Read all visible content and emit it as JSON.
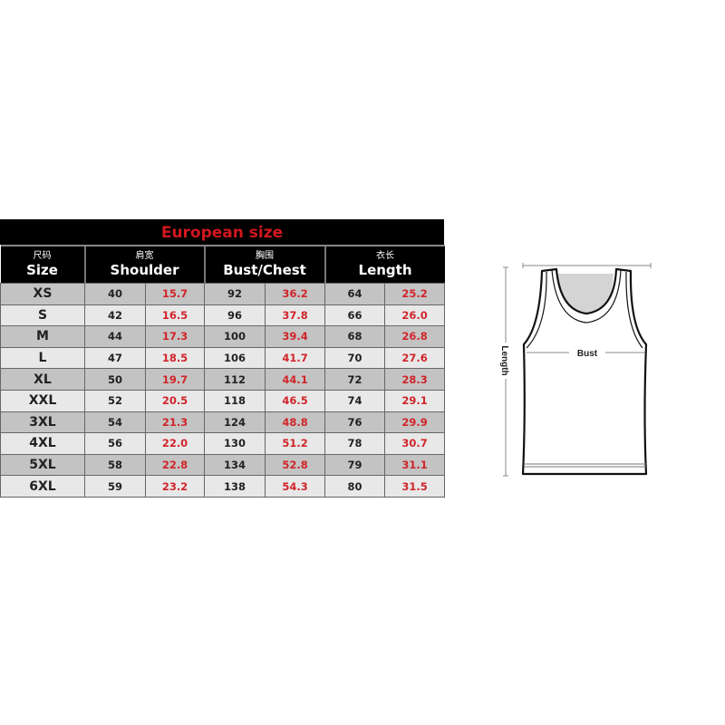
{
  "title": "European size",
  "headers": [
    {
      "cn": "尺码",
      "en": "Size"
    },
    {
      "cn": "肩宽",
      "en": "Shoulder"
    },
    {
      "cn": "胸围",
      "en": "Bust/Chest"
    },
    {
      "cn": "衣长",
      "en": "Length"
    }
  ],
  "rows": [
    {
      "size": "XS",
      "shoulder_cm": "40",
      "shoulder_in": "15.7",
      "bust_cm": "92",
      "bust_in": "36.2",
      "length_cm": "64",
      "length_in": "25.2"
    },
    {
      "size": "S",
      "shoulder_cm": "42",
      "shoulder_in": "16.5",
      "bust_cm": "96",
      "bust_in": "37.8",
      "length_cm": "66",
      "length_in": "26.0"
    },
    {
      "size": "M",
      "shoulder_cm": "44",
      "shoulder_in": "17.3",
      "bust_cm": "100",
      "bust_in": "39.4",
      "length_cm": "68",
      "length_in": "26.8"
    },
    {
      "size": "L",
      "shoulder_cm": "47",
      "shoulder_in": "18.5",
      "bust_cm": "106",
      "bust_in": "41.7",
      "length_cm": "70",
      "length_in": "27.6"
    },
    {
      "size": "XL",
      "shoulder_cm": "50",
      "shoulder_in": "19.7",
      "bust_cm": "112",
      "bust_in": "44.1",
      "length_cm": "72",
      "length_in": "28.3"
    },
    {
      "size": "XXL",
      "shoulder_cm": "52",
      "shoulder_in": "20.5",
      "bust_cm": "118",
      "bust_in": "46.5",
      "length_cm": "74",
      "length_in": "29.1"
    },
    {
      "size": "3XL",
      "shoulder_cm": "54",
      "shoulder_in": "21.3",
      "bust_cm": "124",
      "bust_in": "48.8",
      "length_cm": "76",
      "length_in": "29.9"
    },
    {
      "size": "4XL",
      "shoulder_cm": "56",
      "shoulder_in": "22.0",
      "bust_cm": "130",
      "bust_in": "51.2",
      "length_cm": "78",
      "length_in": "30.7"
    },
    {
      "size": "5XL",
      "shoulder_cm": "58",
      "shoulder_in": "22.8",
      "bust_cm": "134",
      "bust_in": "52.8",
      "length_cm": "79",
      "length_in": "31.1"
    },
    {
      "size": "6XL",
      "shoulder_cm": "59",
      "shoulder_in": "23.2",
      "bust_cm": "138",
      "bust_in": "54.3",
      "length_cm": "80",
      "length_in": "31.5"
    }
  ],
  "diagram": {
    "bust_label": "Bust",
    "length_label": "Length"
  },
  "colors": {
    "title_text": "#d0181e",
    "inch_values": "#d0252a",
    "header_bg": "#000000",
    "row_dark": "#c3c3c3",
    "row_light": "#e8e8e8"
  }
}
